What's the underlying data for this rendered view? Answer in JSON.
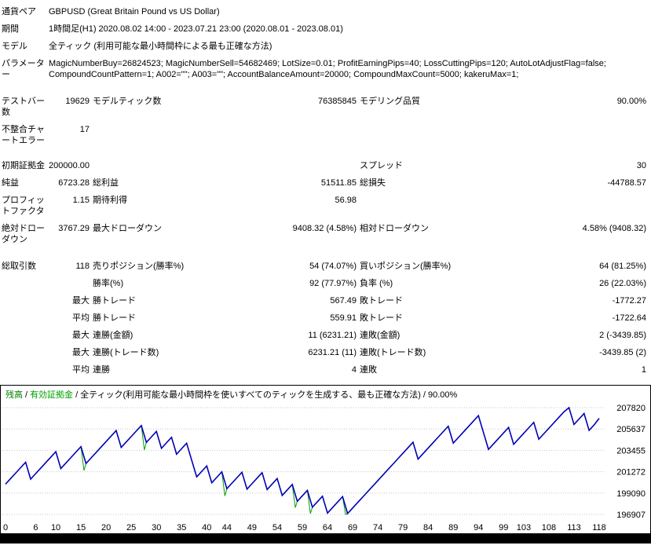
{
  "summary": {
    "info": [
      {
        "label": "通貨ペア",
        "value": "GBPUSD (Great Britain Pound vs US Dollar)"
      },
      {
        "label": "期間",
        "value": "1時間足(H1) 2020.08.02 14:00 - 2023.07.21 23:00 (2020.08.01 - 2023.08.01)"
      },
      {
        "label": "モデル",
        "value": "全ティック (利用可能な最小時間枠による最も正確な方法)"
      },
      {
        "label": "パラメーター",
        "value": "MagicNumberBuy=26824523; MagicNumberSell=54682469; LotSize=0.01; ProfitEarningPips=40; LossCuttingPips=120; AutoLotAdjustFlag=false; CompoundCountPattern=1; A002=\"\"; A003=\"\"; AccountBalanceAmount=20000; CompoundMaxCount=5000; kakeruMax=1;"
      }
    ],
    "stats": [
      {
        "c1": "テストバー数",
        "v1": "19629",
        "c2": "モデルティック数",
        "v2": "76385845",
        "c3": "モデリング品質",
        "v3": "90.00%"
      },
      {
        "c1": "不整合チャートエラー",
        "v1": "17",
        "c2": "",
        "v2": "",
        "c3": "",
        "v3": ""
      },
      {
        "c1": "初期証拠金",
        "v1": "200000.00",
        "c2": "",
        "v2": "",
        "c3": "スプレッド",
        "v3": "30"
      },
      {
        "c1": "純益",
        "v1": "6723.28",
        "c2": "総利益",
        "v2": "51511.85",
        "c3": "総損失",
        "v3": "-44788.57"
      },
      {
        "c1": "プロフィットファクタ",
        "v1": "1.15",
        "c2": "期待利得",
        "v2": "56.98",
        "c3": "",
        "v3": ""
      },
      {
        "c1": "絶対ドローダウン",
        "v1": "3767.29",
        "c2": "最大ドローダウン",
        "v2": "9408.32 (4.58%)",
        "c3": "相対ドローダウン",
        "v3": "4.58% (9408.32)"
      },
      {
        "c1": "総取引数",
        "v1": "118",
        "c2": "売りポジション(勝率%)",
        "v2": "54 (74.07%)",
        "c3": "買いポジション(勝率%)",
        "v3": "64 (81.25%)"
      },
      {
        "c1": "",
        "v1": "",
        "c2": "勝率(%)",
        "v2": "92 (77.97%)",
        "c3": "負率 (%)",
        "v3": "26 (22.03%)"
      },
      {
        "c1": "",
        "v1": "最大",
        "c2": "勝トレード",
        "v2": "567.49",
        "c3": "敗トレード",
        "v3": "-1772.27"
      },
      {
        "c1": "",
        "v1": "平均",
        "c2": "勝トレード",
        "v2": "559.91",
        "c3": "敗トレード",
        "v3": "-1722.64"
      },
      {
        "c1": "",
        "v1": "最大",
        "c2": "連勝(金額)",
        "v2": "11 (6231.21)",
        "c3": "連敗(金額)",
        "v3": "2 (-3439.85)"
      },
      {
        "c1": "",
        "v1": "最大",
        "c2": "連勝(トレード数)",
        "v2": "6231.21 (11)",
        "c3": "連敗(トレード数)",
        "v3": "-3439.85 (2)"
      },
      {
        "c1": "",
        "v1": "平均",
        "c2": "連勝",
        "v2": "4",
        "c3": "連敗",
        "v3": "1"
      }
    ]
  },
  "chart": {
    "legend_balance": "残高",
    "legend_equity": "有効証拠金",
    "legend_model": "全ティック(利用可能な最小時間枠を使いすべてのティックを生成する、最も正確な方法)",
    "legend_quality": "90.00%",
    "separator": "/",
    "legend_colors": {
      "balance": "#007f00",
      "equity": "#00a000"
    }
  },
  "chart_data": {
    "type": "line",
    "title": "残高 / 有効証拠金 / 全ティック(利用可能な最小時間枠を使いすべてのティックを生成する、最も正確な方法) / 90.00%",
    "xlabel": "",
    "ylabel": "",
    "xlim": [
      0,
      118
    ],
    "ylim": [
      196907,
      207820
    ],
    "x_ticks": [
      0,
      6,
      10,
      15,
      20,
      25,
      30,
      35,
      40,
      44,
      49,
      54,
      59,
      64,
      69,
      74,
      79,
      84,
      89,
      94,
      99,
      103,
      108,
      113,
      118
    ],
    "y_ticks": [
      207820,
      205637,
      203455,
      201272,
      199090,
      196907
    ],
    "grid": "horizontal-dotted",
    "legend_position": "top-left",
    "equity_color": "#00a000",
    "series": [
      {
        "name": "残高",
        "color": "#0000b4",
        "values": [
          200000,
          200560,
          201120,
          201680,
          202240,
          200518,
          201078,
          201638,
          202198,
          202758,
          203318,
          201596,
          202156,
          202716,
          203276,
          203836,
          202114,
          202674,
          203234,
          203794,
          204354,
          204914,
          205474,
          203752,
          204312,
          204872,
          205432,
          205992,
          204270,
          204830,
          205390,
          203668,
          204228,
          204788,
          203066,
          203626,
          204186,
          202464,
          200742,
          201302,
          201862,
          200140,
          200700,
          201260,
          199538,
          200098,
          200658,
          201218,
          199496,
          200056,
          200616,
          201176,
          199454,
          200014,
          200574,
          198852,
          199412,
          199972,
          198250,
          198810,
          199370,
          197648,
          198208,
          198768,
          197046,
          197606,
          198166,
          198726,
          197004,
          197564,
          198124,
          198684,
          199244,
          199804,
          200364,
          200924,
          201484,
          202044,
          202604,
          203164,
          203724,
          204284,
          202562,
          203122,
          203682,
          204242,
          204802,
          205362,
          205922,
          204200,
          204760,
          205320,
          205880,
          206440,
          207000,
          205278,
          203556,
          204116,
          204676,
          205236,
          205796,
          204074,
          204634,
          205194,
          205754,
          206314,
          204592,
          205152,
          205712,
          206272,
          206832,
          207392,
          207820,
          206098,
          206658,
          207218,
          205496,
          206056,
          206723
        ]
      }
    ],
    "equity_dips": [
      {
        "trade": 16,
        "low": 201400
      },
      {
        "trade": 28,
        "low": 203500
      },
      {
        "trade": 44,
        "low": 198800
      },
      {
        "trade": 58,
        "low": 197600
      },
      {
        "trade": 61,
        "low": 197000
      },
      {
        "trade": 68,
        "low": 196910
      }
    ]
  }
}
